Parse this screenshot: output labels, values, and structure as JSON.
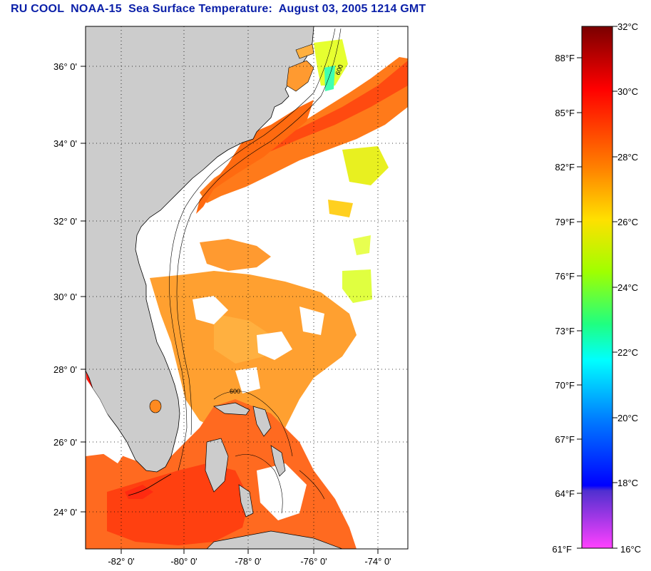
{
  "title": "RU COOL  NOAA-15  Sea Surface Temperature:  August 03, 2005 1214 GMT",
  "map": {
    "lat_labels": [
      "36° 0'",
      "34° 0'",
      "32° 0'",
      "30° 0'",
      "28° 0'",
      "26° 0'",
      "24° 0'"
    ],
    "lon_labels": [
      "-82° 0'",
      "-80° 0'",
      "-78° 0'",
      "-76° 0'",
      "-74° 0'"
    ],
    "grid": "dotted",
    "land_color": "#cccccc",
    "no_data_color": "#ffffff",
    "isobath_labels": [
      "600"
    ]
  },
  "colorbar": {
    "celsius_labels": [
      "32°C",
      "30°C",
      "28°C",
      "26°C",
      "24°C",
      "22°C",
      "20°C",
      "18°C",
      "16°C"
    ],
    "fahrenheit_labels": [
      "88°F",
      "85°F",
      "82°F",
      "79°F",
      "76°F",
      "73°F",
      "70°F",
      "67°F",
      "64°F",
      "61°F"
    ],
    "colors": [
      "#7a0000",
      "#ff0000",
      "#ff7a00",
      "#ffff00",
      "#80ff00",
      "#00ffc0",
      "#00a0ff",
      "#0000ff",
      "#7a20c0",
      "#ff40ff"
    ]
  }
}
